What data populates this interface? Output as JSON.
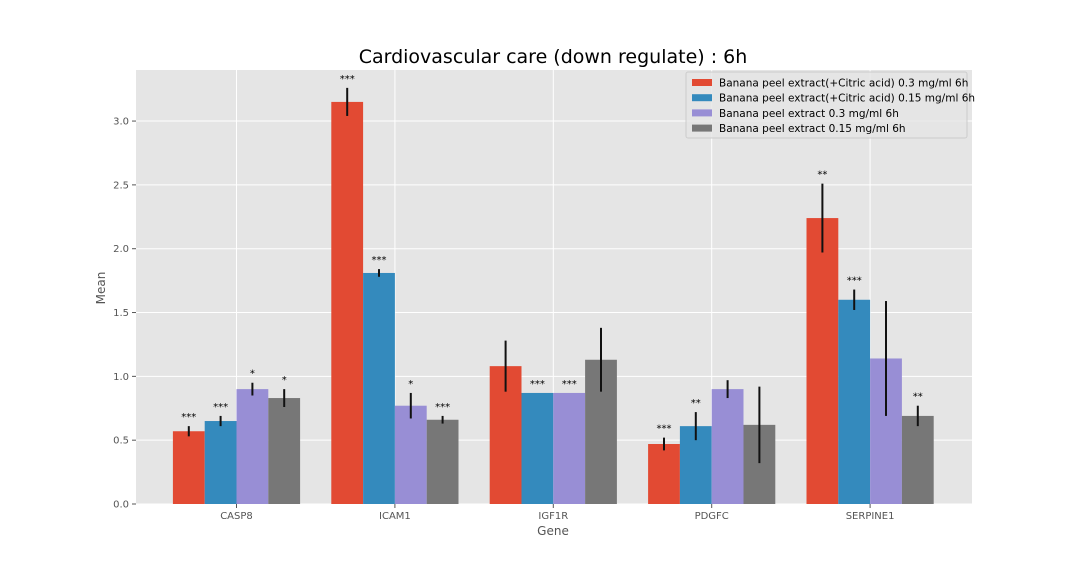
{
  "chart_data": {
    "type": "bar",
    "title": "Cardiovascular care (down regulate) : 6h",
    "xlabel": "Gene",
    "ylabel": "Mean",
    "ylim": [
      0,
      3.4
    ],
    "yticks": [
      "0.0",
      "0.5",
      "1.0",
      "1.5",
      "2.0",
      "2.5",
      "3.0"
    ],
    "grid": true,
    "legend_position": "top-right",
    "categories": [
      "CASP8",
      "ICAM1",
      "IGF1R",
      "PDGFC",
      "SERPINE1"
    ],
    "series": [
      {
        "name": "Banana peel extract(+Citric acid) 0.3 mg/ml 6h",
        "color": "#E24A33",
        "values": [
          0.57,
          3.15,
          1.08,
          0.47,
          2.24
        ],
        "errors": [
          0.04,
          0.11,
          0.2,
          0.05,
          0.27
        ],
        "labels": [
          "***",
          "***",
          "",
          "***",
          "**"
        ]
      },
      {
        "name": "Banana peel extract(+Citric acid) 0.15 mg/ml 6h",
        "color": "#348ABD",
        "values": [
          0.65,
          1.81,
          0.87,
          0.61,
          1.6
        ],
        "errors": [
          0.04,
          0.03,
          0.0,
          0.11,
          0.08
        ],
        "labels": [
          "***",
          "***",
          "***",
          "**",
          "***"
        ]
      },
      {
        "name": "Banana peel extract 0.3 mg/ml 6h",
        "color": "#988ED5",
        "values": [
          0.9,
          0.77,
          0.87,
          0.9,
          1.14
        ],
        "errors": [
          0.05,
          0.1,
          0.0,
          0.07,
          0.45
        ],
        "labels": [
          "*",
          "*",
          "***",
          "",
          ""
        ]
      },
      {
        "name": "Banana peel extract 0.15 mg/ml 6h",
        "color": "#777777",
        "values": [
          0.83,
          0.66,
          1.13,
          0.62,
          0.69
        ],
        "errors": [
          0.07,
          0.03,
          0.25,
          0.3,
          0.08
        ],
        "labels": [
          "*",
          "***",
          "",
          "",
          "**"
        ]
      }
    ]
  }
}
